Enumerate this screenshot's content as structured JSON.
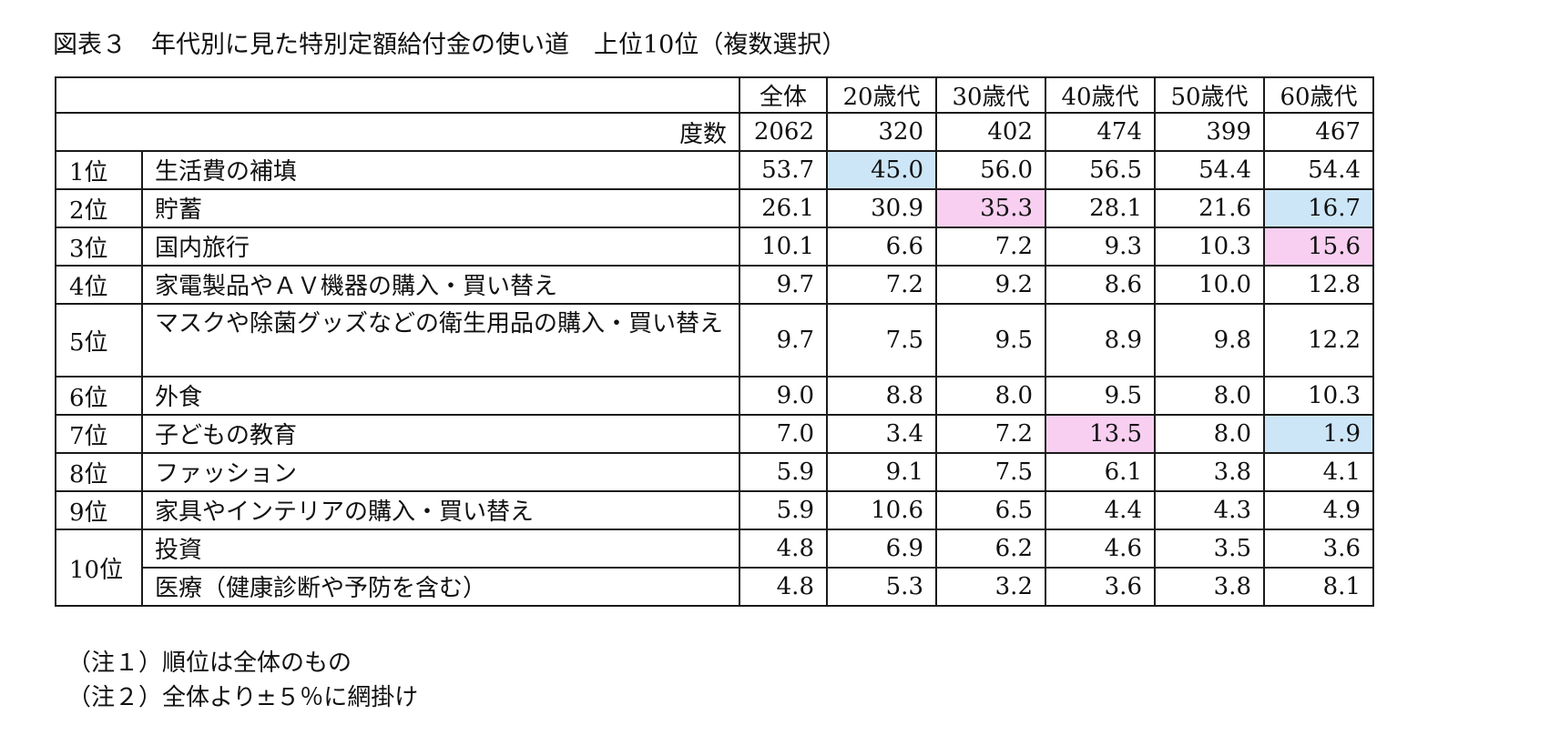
{
  "title": "図表３　年代別に見た特別定額給付金の使い道　上位10位（複数選択）",
  "header": {
    "columns": [
      "全体",
      "20歳代",
      "30歳代",
      "40歳代",
      "50歳代",
      "60歳代"
    ]
  },
  "count_row": {
    "label": "度数",
    "values": [
      "2062",
      "320",
      "402",
      "474",
      "399",
      "467"
    ]
  },
  "rows": [
    {
      "rank": "1位",
      "item": "生活費の補填",
      "values": [
        "53.7",
        "45.0",
        "56.0",
        "56.5",
        "54.4",
        "54.4"
      ]
    },
    {
      "rank": "2位",
      "item": "貯蓄",
      "values": [
        "26.1",
        "30.9",
        "35.3",
        "28.1",
        "21.6",
        "16.7"
      ]
    },
    {
      "rank": "3位",
      "item": "国内旅行",
      "values": [
        "10.1",
        "6.6",
        "7.2",
        "9.3",
        "10.3",
        "15.6"
      ]
    },
    {
      "rank": "4位",
      "item": "家電製品やＡＶ機器の購入・買い替え",
      "values": [
        "9.7",
        "7.2",
        "9.2",
        "8.6",
        "10.0",
        "12.8"
      ]
    },
    {
      "rank": "5位",
      "item": "マスクや除菌グッズなどの衛生用品の購入・買い替え",
      "values": [
        "9.7",
        "7.5",
        "9.5",
        "8.9",
        "9.8",
        "12.2"
      ]
    },
    {
      "rank": "6位",
      "item": "外食",
      "values": [
        "9.0",
        "8.8",
        "8.0",
        "9.5",
        "8.0",
        "10.3"
      ]
    },
    {
      "rank": "7位",
      "item": "子どもの教育",
      "values": [
        "7.0",
        "3.4",
        "7.2",
        "13.5",
        "8.0",
        "1.9"
      ]
    },
    {
      "rank": "8位",
      "item": "ファッション",
      "values": [
        "5.9",
        "9.1",
        "7.5",
        "6.1",
        "3.8",
        "4.1"
      ]
    },
    {
      "rank": "9位",
      "item": "家具やインテリアの購入・買い替え",
      "values": [
        "5.9",
        "10.6",
        "6.5",
        "4.4",
        "4.3",
        "4.9"
      ]
    },
    {
      "rank": "10位",
      "item": "投資",
      "values": [
        "4.8",
        "6.9",
        "6.2",
        "4.6",
        "3.5",
        "3.6"
      ]
    },
    {
      "rank": "",
      "item": "医療（健康診断や予防を含む）",
      "values": [
        "4.8",
        "5.3",
        "3.2",
        "3.6",
        "3.8",
        "8.1"
      ]
    }
  ],
  "highlight_colors": {
    "below_total": "#cde6f7",
    "above_total": "#f8cff0"
  },
  "notes": [
    "（注１）順位は全体のもの",
    "（注２）全体より±５％に網掛け"
  ]
}
